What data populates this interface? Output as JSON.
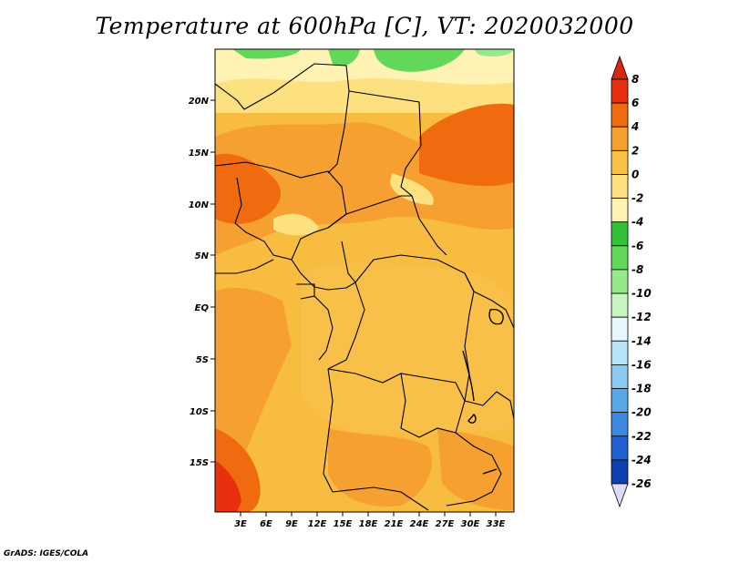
{
  "title": "Temperature at 600hPa [C], VT: 2020032000",
  "footer": "GrADS: IGES/COLA",
  "map": {
    "lat_labels": [
      "20N",
      "15N",
      "10N",
      "5N",
      "EQ",
      "5S",
      "10S",
      "15S"
    ],
    "lon_labels": [
      "3E",
      "6E",
      "9E",
      "12E",
      "15E",
      "18E",
      "21E",
      "24E",
      "27E",
      "30E",
      "33E"
    ]
  },
  "colorbar": {
    "labels": [
      "8",
      "6",
      "4",
      "2",
      "0",
      "-2",
      "-4",
      "-6",
      "-8",
      "-10",
      "-12",
      "-14",
      "-16",
      "-18",
      "-20",
      "-22",
      "-24",
      "-26"
    ],
    "colors": [
      "#a50000",
      "#e83010",
      "#f06a10",
      "#f5a030",
      "#f8c048",
      "#fde080",
      "#fff3b4",
      "#34c038",
      "#62d85a",
      "#96e88a",
      "#c6f5bf",
      "#e6f8fc",
      "#b8e4f8",
      "#8acaf0",
      "#5aa8e8",
      "#3c88e0",
      "#2060d0",
      "#1040b0",
      "#0a2090",
      "#08105c"
    ],
    "top_arrow_color": "#d42a10",
    "bottom_arrow_color": "#dcdcf8"
  }
}
